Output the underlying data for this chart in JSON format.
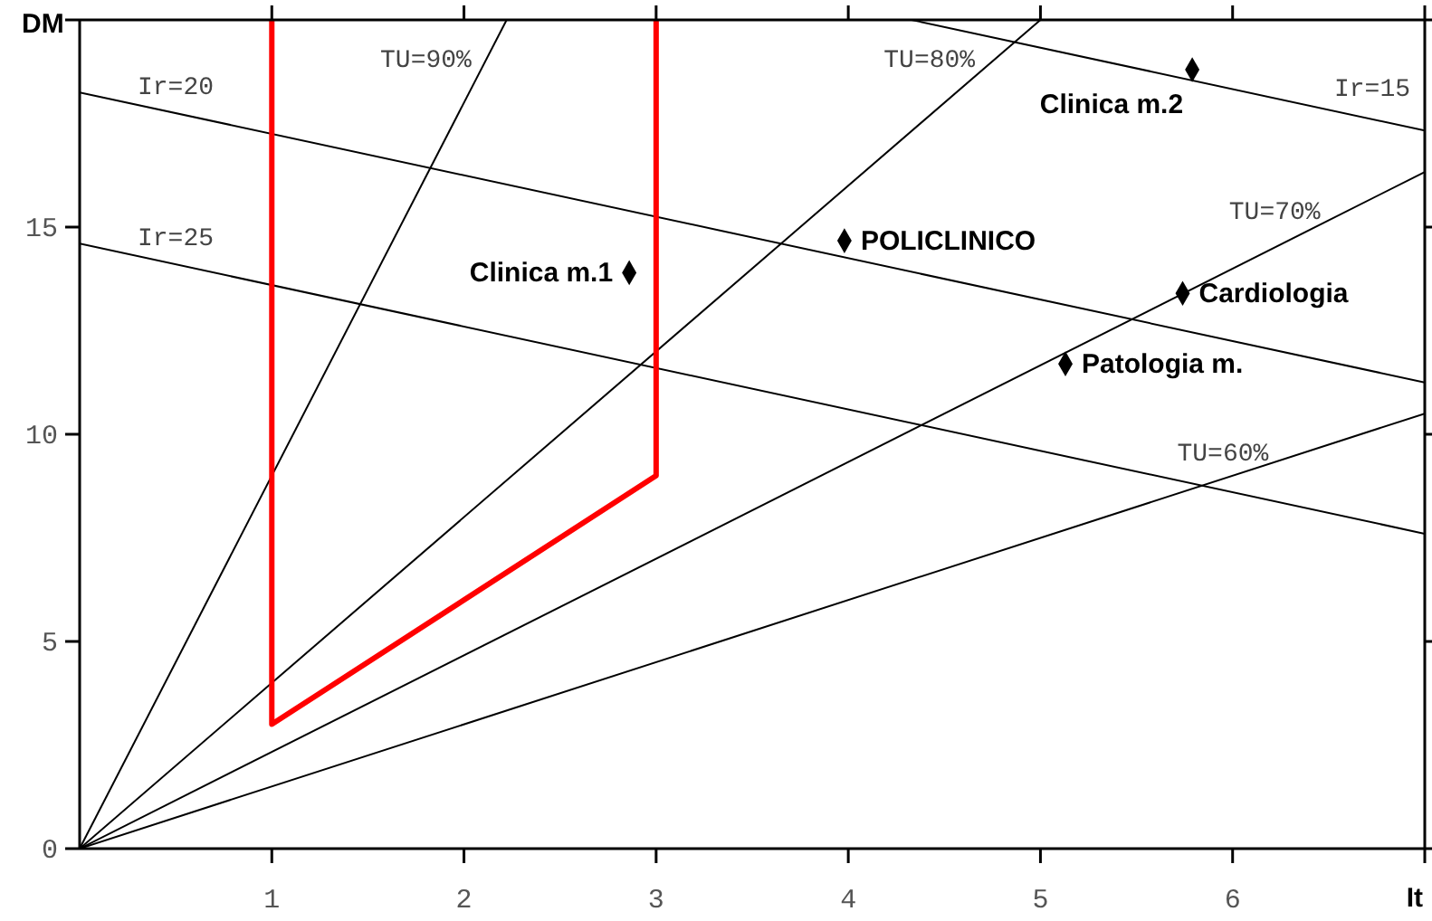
{
  "chart_data": {
    "type": "line",
    "xlabel": "It",
    "ylabel": "DM",
    "xlim": [
      0,
      7
    ],
    "ylim": [
      0,
      20
    ],
    "xticks": [
      1,
      2,
      3,
      4,
      5,
      6,
      {
        "value": 7,
        "label": null
      }
    ],
    "yticks": [
      0,
      5,
      10,
      15,
      {
        "value": 20,
        "label": null
      }
    ],
    "marker": "none",
    "series": [
      {
        "name": "TU=90%",
        "color": "#000000",
        "x": [
          0,
          2.222
        ],
        "values": [
          0,
          20
        ]
      },
      {
        "name": "TU=80%",
        "color": "#000000",
        "x": [
          0,
          5
        ],
        "values": [
          0,
          20
        ]
      },
      {
        "name": "TU=70%",
        "color": "#000000",
        "x": [
          0,
          7
        ],
        "values": [
          0,
          16.33
        ]
      },
      {
        "name": "TU=60%",
        "color": "#000000",
        "x": [
          0,
          7
        ],
        "values": [
          0,
          10.5
        ]
      },
      {
        "name": "Ir=15",
        "color": "#000000",
        "x": [
          4.33,
          7
        ],
        "values": [
          20,
          17.33
        ]
      },
      {
        "name": "Ir=20",
        "color": "#000000",
        "x": [
          0,
          7
        ],
        "values": [
          18.25,
          11.25
        ]
      },
      {
        "name": "Ir=25",
        "color": "#000000",
        "x": [
          0,
          7
        ],
        "values": [
          14.6,
          7.6
        ]
      },
      {
        "color": "#ff0000",
        "x": [
          1,
          1,
          3,
          3
        ],
        "values": [
          20,
          3,
          9,
          20
        ]
      },
      {
        "type": "scatter",
        "marker": "diamond",
        "name": "Clinica m.1",
        "color": "#000000",
        "x": [
          2.86
        ],
        "values": [
          13.9
        ]
      },
      {
        "type": "scatter",
        "marker": "diamond",
        "name": "POLICLINICO",
        "color": "#000000",
        "x": [
          3.98
        ],
        "values": [
          14.67
        ]
      },
      {
        "type": "scatter",
        "marker": "diamond",
        "name": "Clinica m.2",
        "color": "#000000",
        "x": [
          5.79
        ],
        "values": [
          18.8
        ]
      },
      {
        "type": "scatter",
        "marker": "diamond",
        "name": "Cardiologia",
        "color": "#000000",
        "x": [
          5.74
        ],
        "values": [
          13.4
        ]
      },
      {
        "type": "scatter",
        "marker": "diamond",
        "name": "Patologia m.",
        "color": "#000000",
        "x": [
          5.13
        ],
        "values": [
          11.7
        ]
      }
    ]
  }
}
